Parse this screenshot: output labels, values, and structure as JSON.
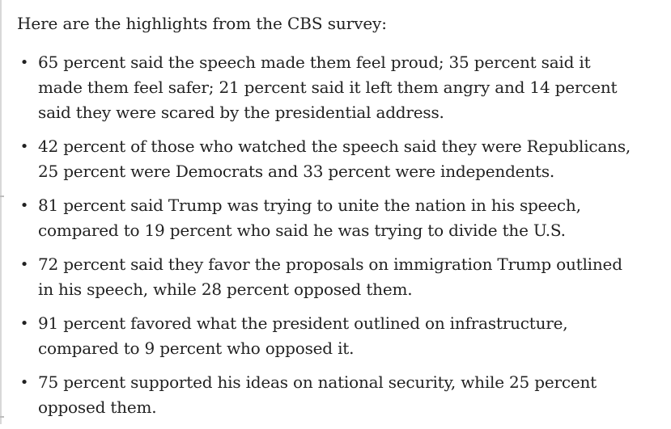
{
  "intro": "Here are the highlights from the CBS survey:",
  "bullet_glyph": "•",
  "highlights": [
    {
      "line1": "65 percent said the speech made them feel proud; 35 percent said it",
      "line2": "made them feel safer; 21 percent said it left them angry and 14 percent",
      "line3": "said they were scared by the presidential address."
    },
    {
      "line1": "42 percent of those who watched the speech said they were Republicans,",
      "line2": "25 percent were Democrats and 33 percent were independents."
    },
    {
      "line1": "81 percent said Trump was trying to unite the nation in his speech,",
      "line2": "compared to 19 percent who said he was trying to divide the U.S."
    },
    {
      "line1": "72 percent said they favor the proposals on immigration Trump outlined",
      "line2": "in his speech, while 28 percent opposed them."
    },
    {
      "line1": "91 percent favored what the president outlined on infrastructure,",
      "line2": "compared to 9 percent who opposed it."
    },
    {
      "line1": "75 percent supported his ideas on national security, while 25 percent",
      "line2": "opposed them."
    }
  ]
}
